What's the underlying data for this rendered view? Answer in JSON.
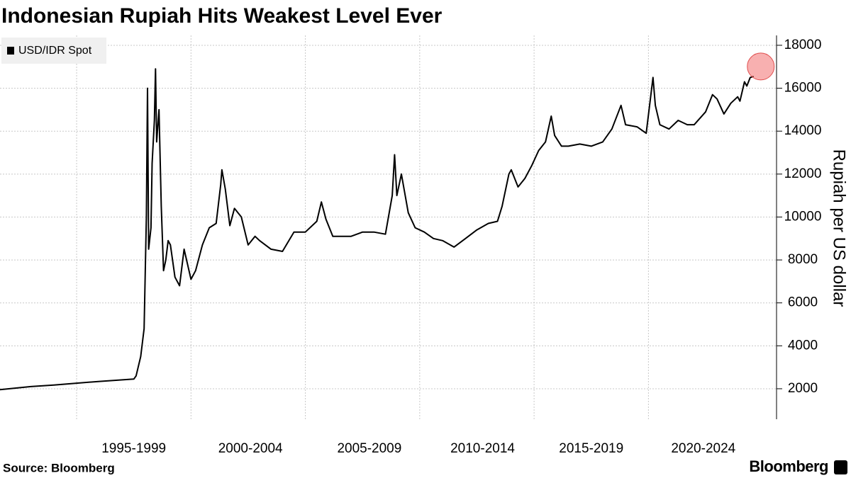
{
  "chart_data": {
    "type": "line",
    "title": "Indonesian Rupiah Hits Weakest Level Ever",
    "y_axis_label": "Rupiah per US dollar",
    "source": "Source: Bloomberg",
    "brand": "Bloomberg",
    "x": [
      1991.65,
      1993,
      1994,
      1995,
      1996,
      1997.5,
      1997.6,
      1997.8,
      1997.95,
      1998.05,
      1998.1,
      1998.15,
      1998.25,
      1998.3,
      1998.4,
      1998.45,
      1998.5,
      1998.6,
      1998.7,
      1998.8,
      1998.9,
      1999.0,
      1999.1,
      1999.3,
      1999.5,
      1999.7,
      2000.0,
      2000.2,
      2000.5,
      2000.8,
      2001.1,
      2001.3,
      2001.35,
      2001.5,
      2001.7,
      2001.9,
      2002.2,
      2002.5,
      2002.8,
      2003.0,
      2003.5,
      2004.0,
      2004.5,
      2005.0,
      2005.5,
      2005.7,
      2005.9,
      2006.2,
      2006.5,
      2007.0,
      2007.5,
      2008.0,
      2008.5,
      2008.8,
      2008.9,
      2009.0,
      2009.2,
      2009.5,
      2009.8,
      2010.2,
      2010.6,
      2011.0,
      2011.5,
      2012.0,
      2012.5,
      2013.0,
      2013.4,
      2013.6,
      2013.9,
      2014.0,
      2014.3,
      2014.6,
      2014.9,
      2015.2,
      2015.5,
      2015.75,
      2015.9,
      2016.2,
      2016.5,
      2017.0,
      2017.5,
      2018.0,
      2018.4,
      2018.8,
      2019.0,
      2019.5,
      2019.9,
      2020.2,
      2020.3,
      2020.5,
      2020.9,
      2021.3,
      2021.7,
      2022.0,
      2022.5,
      2022.8,
      2023.0,
      2023.3,
      2023.6,
      2023.9,
      2024.0,
      2024.2,
      2024.3,
      2024.45,
      2024.6
    ],
    "series": [
      {
        "name": "USD/IDR Spot",
        "color": "#000000",
        "values": [
          1960,
          2100,
          2170,
          2260,
          2340,
          2450,
          2600,
          3500,
          4800,
          10000,
          16000,
          8500,
          9500,
          12500,
          14500,
          16900,
          13500,
          15000,
          10500,
          7500,
          8000,
          8900,
          8700,
          7200,
          6800,
          8500,
          7100,
          7500,
          8700,
          9500,
          9700,
          11500,
          12200,
          11300,
          9600,
          10400,
          10000,
          8700,
          9100,
          8900,
          8500,
          8400,
          9300,
          9300,
          9800,
          10700,
          9900,
          9100,
          9100,
          9100,
          9300,
          9300,
          9200,
          11000,
          12900,
          11000,
          12000,
          10200,
          9500,
          9300,
          9000,
          8900,
          8600,
          9000,
          9400,
          9700,
          9800,
          10500,
          12000,
          12200,
          11400,
          11800,
          12400,
          13100,
          13500,
          14700,
          13800,
          13300,
          13300,
          13400,
          13300,
          13500,
          14100,
          15200,
          14300,
          14200,
          13900,
          16500,
          15200,
          14300,
          14100,
          14500,
          14300,
          14300,
          14900,
          15700,
          15500,
          14800,
          15300,
          15600,
          15400,
          16300,
          16100,
          16500,
          16550
        ]
      }
    ],
    "xlim": [
      1991.65,
      2025.6
    ],
    "xticks": [
      {
        "value": 1997.5,
        "label": "1995-1999"
      },
      {
        "value": 2002.6,
        "label": "2000-2004"
      },
      {
        "value": 2007.8,
        "label": "2005-2009"
      },
      {
        "value": 2012.75,
        "label": "2010-2014"
      },
      {
        "value": 2017.5,
        "label": "2015-2019"
      },
      {
        "value": 2022.4,
        "label": "2020-2024"
      }
    ],
    "xgrid": [
      1995,
      2000,
      2005,
      2010,
      2015,
      2020
    ],
    "ylim": [
      580,
      18460
    ],
    "yticks": [
      2000,
      4000,
      6000,
      8000,
      10000,
      12000,
      14000,
      16000,
      18000
    ],
    "grid": true,
    "legend": "upper left"
  }
}
